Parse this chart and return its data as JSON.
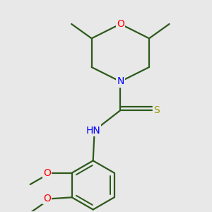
{
  "bg_color": "#e8e8e8",
  "bond_color": "#2d5a1b",
  "bond_width": 1.6,
  "atom_colors": {
    "O": "#ff0000",
    "N": "#0000ff",
    "S": "#999900",
    "C": "#2d5a1b",
    "H": "#2d5a1b"
  },
  "font_size": 9,
  "figsize": [
    3.0,
    3.0
  ],
  "dpi": 100,
  "xlim": [
    -2.5,
    3.5
  ],
  "ylim": [
    -4.5,
    2.8
  ]
}
